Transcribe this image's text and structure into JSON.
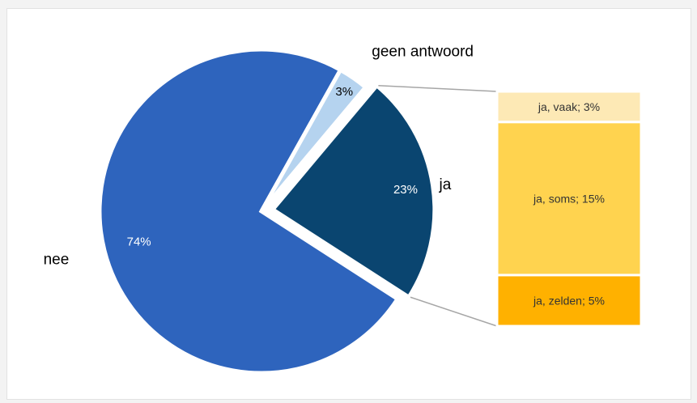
{
  "chart_data": {
    "type": "pie",
    "title": "",
    "slices": [
      {
        "label": "ja",
        "value": 23,
        "value_label": "23%",
        "color": "#0a4570"
      },
      {
        "label": "nee",
        "value": 74,
        "value_label": "74%",
        "color": "#2e64bd"
      },
      {
        "label": "geen antwoord",
        "value": 3,
        "value_label": "3%",
        "color": "#b5d3ef"
      }
    ],
    "breakdown": {
      "of": "ja",
      "type": "stacked-bar",
      "segments": [
        {
          "label": "ja, vaak; 3%",
          "value": 3,
          "color": "#fde9b5"
        },
        {
          "label": "ja, soms; 15%",
          "value": 15,
          "color": "#ffd34f"
        },
        {
          "label": "ja, zelden; 5%",
          "value": 5,
          "color": "#ffb100"
        }
      ]
    },
    "legend": "none"
  }
}
